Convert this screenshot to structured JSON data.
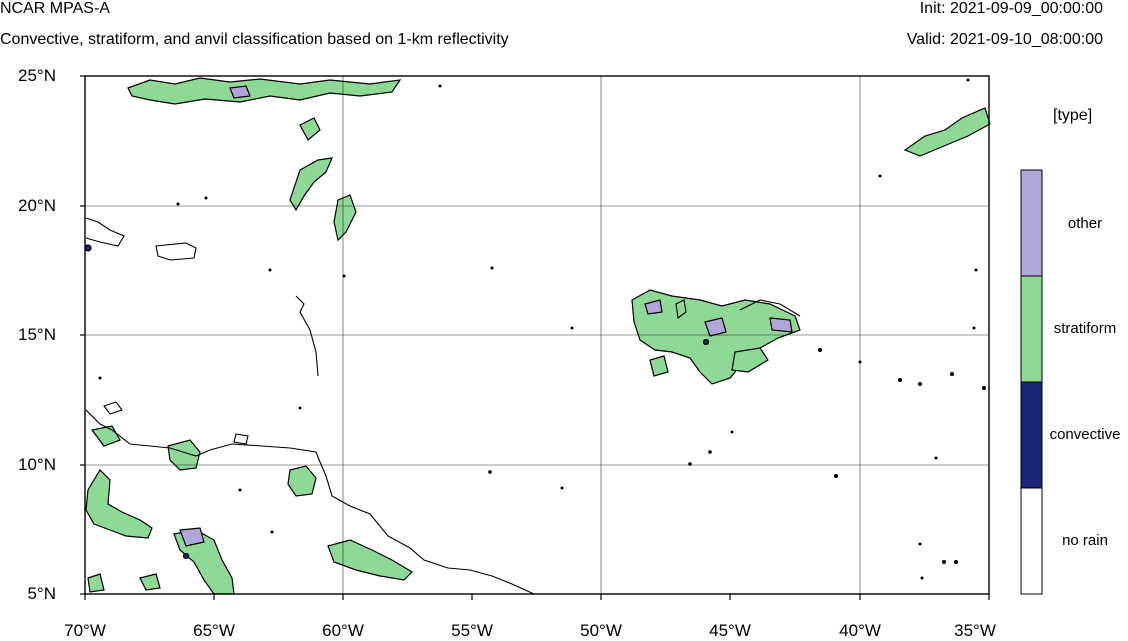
{
  "header": {
    "title": "NCAR MPAS-A",
    "subtitle": "Convective, stratiform, and anvil classification based on 1-km reflectivity",
    "init": "Init: 2021-09-09_00:00:00",
    "valid": "Valid: 2021-09-10_08:00:00"
  },
  "map": {
    "lon_range": [
      -70,
      -35
    ],
    "lat_range": [
      5,
      25
    ],
    "grid": true,
    "x_ticks": [
      "70°W",
      "65°W",
      "60°W",
      "55°W",
      "50°W",
      "45°W",
      "40°W",
      "35°W"
    ],
    "y_ticks": [
      "25°N",
      "20°N",
      "15°N",
      "10°N",
      "5°N"
    ]
  },
  "legend": {
    "title": "[type]",
    "classes": [
      {
        "label": "other",
        "color": "#b1a6d9"
      },
      {
        "label": "stratiform",
        "color": "#8fd996"
      },
      {
        "label": "convective",
        "color": "#1a2575"
      },
      {
        "label": "no rain",
        "color": "#ffffff"
      }
    ]
  },
  "colors": {
    "stratiform": "#8fd996",
    "other": "#b1a6d9",
    "convective": "#1a2575",
    "contour": "#000000"
  }
}
